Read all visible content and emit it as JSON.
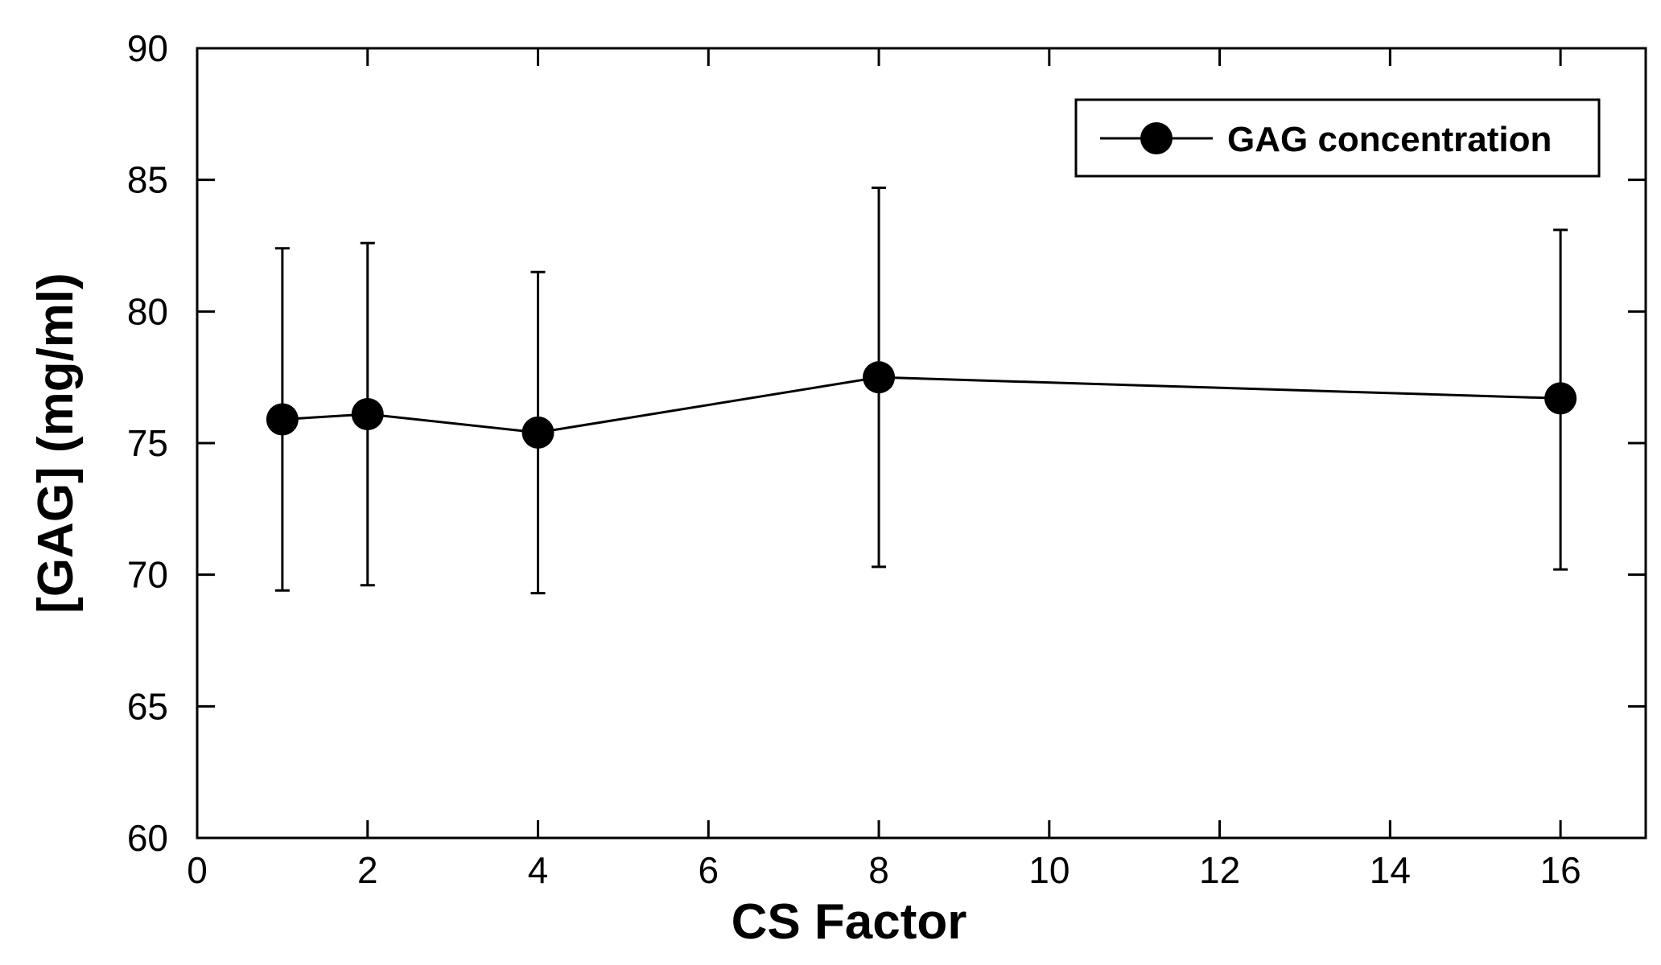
{
  "chart_data": {
    "type": "line",
    "title": "",
    "xlabel": "CS Factor",
    "ylabel": "[GAG] (mg/ml)",
    "xlim": [
      0,
      17
    ],
    "ylim": [
      60,
      90
    ],
    "xticks": [
      0,
      2,
      4,
      6,
      8,
      10,
      12,
      14,
      16
    ],
    "yticks": [
      60,
      65,
      70,
      75,
      80,
      85,
      90
    ],
    "grid": false,
    "legend": {
      "placement": "top-right"
    },
    "series": [
      {
        "name": "GAG concentration",
        "color": "#000000",
        "marker": "filled-circle",
        "x": [
          1,
          2,
          4,
          8,
          16
        ],
        "y": [
          75.9,
          76.1,
          75.4,
          77.5,
          76.7
        ],
        "error_low": [
          69.4,
          69.6,
          69.3,
          70.3,
          70.2
        ],
        "error_high": [
          82.4,
          82.6,
          81.5,
          84.7,
          83.1
        ]
      }
    ]
  }
}
